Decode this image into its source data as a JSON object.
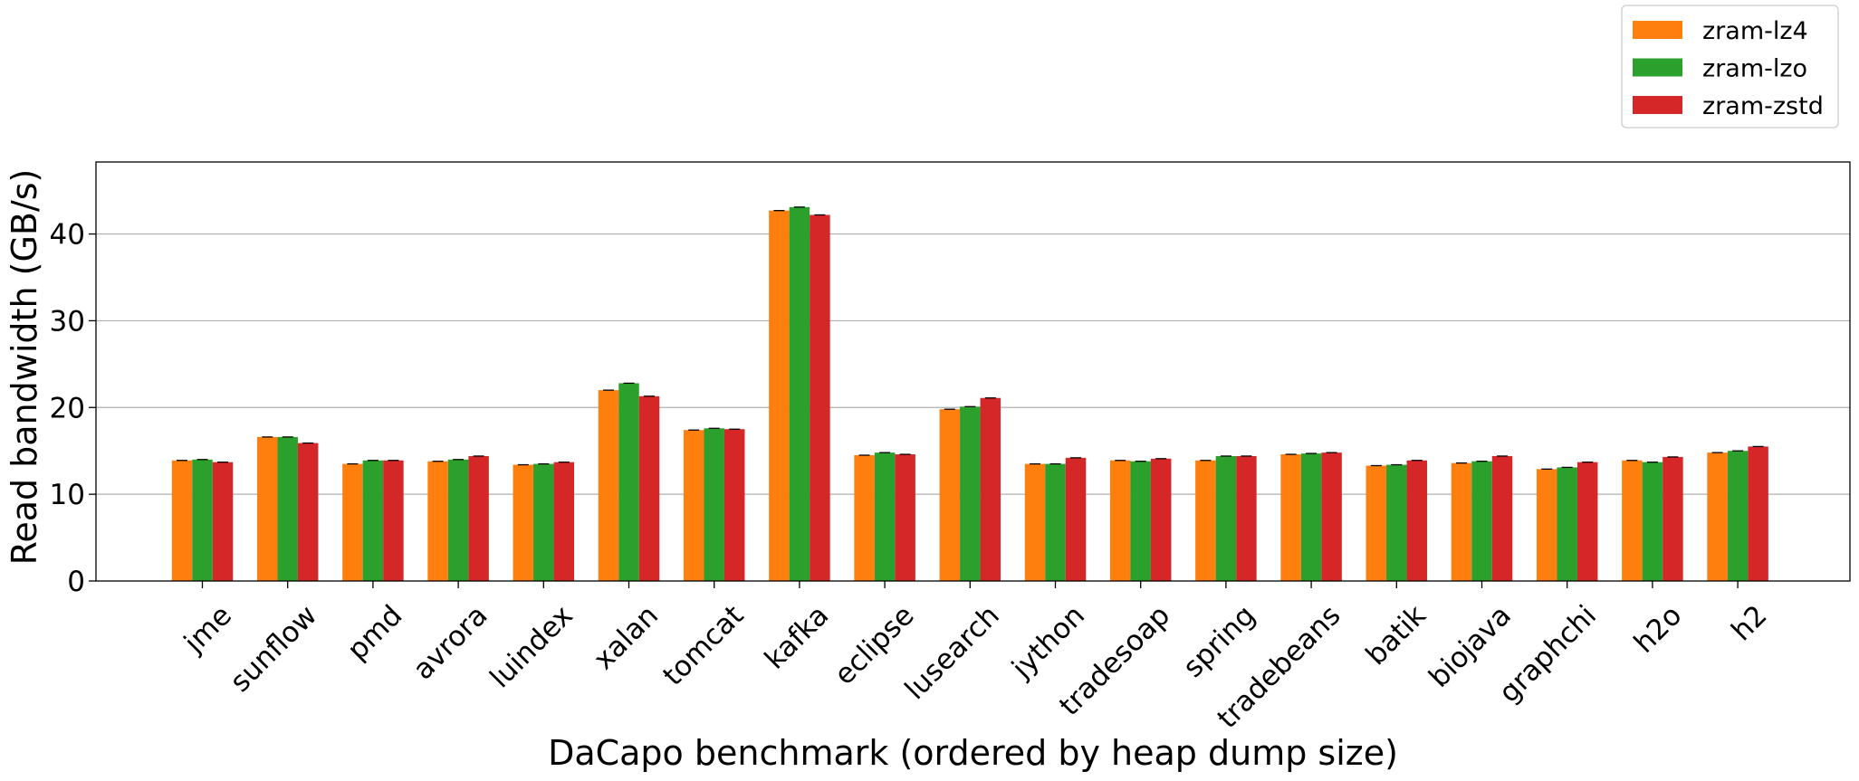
{
  "chart_data": {
    "type": "bar",
    "title": "",
    "xlabel": "DaCapo benchmark (ordered by heap dump size)",
    "ylabel": "Read bandwidth (GB/s)",
    "ylim": [
      0,
      48.3
    ],
    "yticks": [
      0,
      10,
      20,
      30,
      40
    ],
    "grid": "y",
    "legend_position": "top-right",
    "categories": [
      "jme",
      "sunflow",
      "pmd",
      "avrora",
      "luindex",
      "xalan",
      "tomcat",
      "kafka",
      "eclipse",
      "lusearch",
      "jython",
      "tradesoap",
      "spring",
      "tradebeans",
      "batik",
      "biojava",
      "graphchi",
      "h2o",
      "h2"
    ],
    "series": [
      {
        "name": "zram-lz4",
        "color": "#ff7f0e",
        "values": [
          13.9,
          16.6,
          13.5,
          13.8,
          13.4,
          22.0,
          17.4,
          42.7,
          14.5,
          19.8,
          13.5,
          13.9,
          13.9,
          14.6,
          13.3,
          13.6,
          12.9,
          13.9,
          14.8
        ]
      },
      {
        "name": "zram-lzo",
        "color": "#2ca02c",
        "values": [
          14.0,
          16.6,
          13.9,
          14.0,
          13.5,
          22.8,
          17.6,
          43.1,
          14.8,
          20.1,
          13.5,
          13.8,
          14.4,
          14.7,
          13.4,
          13.8,
          13.1,
          13.7,
          15.0
        ]
      },
      {
        "name": "zram-zstd",
        "color": "#d62728",
        "values": [
          13.7,
          15.9,
          13.9,
          14.4,
          13.7,
          21.3,
          17.5,
          42.2,
          14.6,
          21.1,
          14.2,
          14.1,
          14.4,
          14.8,
          13.9,
          14.4,
          13.7,
          14.3,
          15.5
        ]
      }
    ]
  }
}
